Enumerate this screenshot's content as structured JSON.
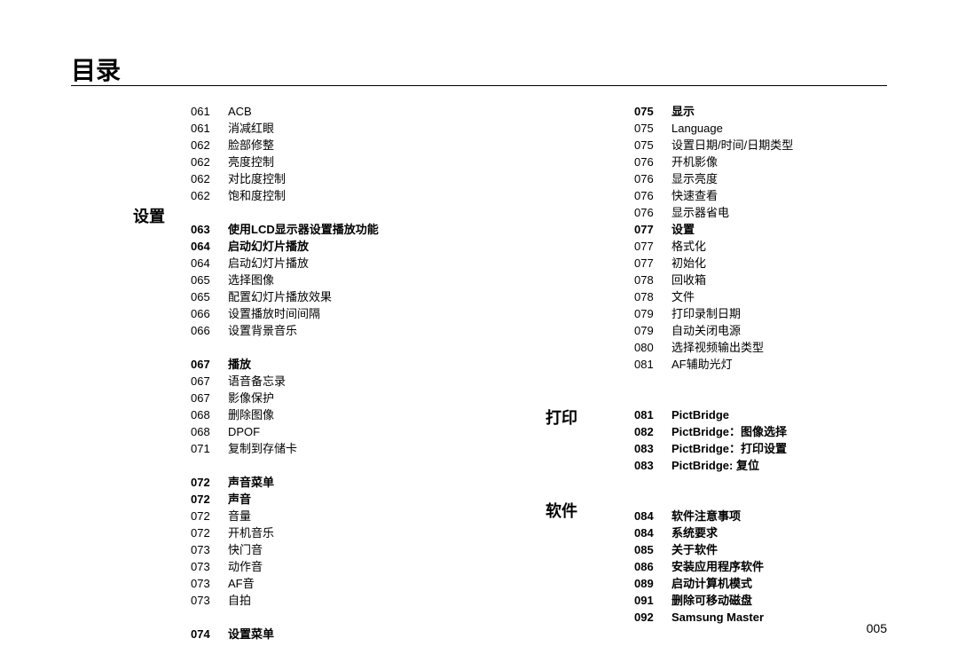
{
  "title": "目录",
  "pageNumber": "005",
  "sections": {
    "settings": "设置",
    "print": "打印",
    "software": "软件"
  },
  "col1": [
    {
      "pg": "061",
      "txt": "ACB",
      "bold": false
    },
    {
      "pg": "061",
      "txt": "消减红眼",
      "bold": false
    },
    {
      "pg": "062",
      "txt": "脸部修整",
      "bold": false
    },
    {
      "pg": "062",
      "txt": "亮度控制",
      "bold": false
    },
    {
      "pg": "062",
      "txt": "对比度控制",
      "bold": false
    },
    {
      "pg": "062",
      "txt": "饱和度控制",
      "bold": false
    },
    {
      "pg": "063",
      "txt": "使用LCD显示器设置播放功能",
      "bold": true
    },
    {
      "pg": "064",
      "txt": "启动幻灯片播放",
      "bold": true
    },
    {
      "pg": "064",
      "txt": "启动幻灯片播放",
      "bold": false
    },
    {
      "pg": "065",
      "txt": "选择图像",
      "bold": false
    },
    {
      "pg": "065",
      "txt": "配置幻灯片播放效果",
      "bold": false
    },
    {
      "pg": "066",
      "txt": "设置播放时间间隔",
      "bold": false
    },
    {
      "pg": "066",
      "txt": "设置背景音乐",
      "bold": false
    },
    {
      "pg": "067",
      "txt": "播放",
      "bold": true
    },
    {
      "pg": "067",
      "txt": "语音备忘录",
      "bold": false
    },
    {
      "pg": "067",
      "txt": "影像保护",
      "bold": false
    },
    {
      "pg": "068",
      "txt": "删除图像",
      "bold": false
    },
    {
      "pg": "068",
      "txt": "DPOF",
      "bold": false
    },
    {
      "pg": "071",
      "txt": "复制到存储卡",
      "bold": false
    },
    {
      "pg": "072",
      "txt": "声音菜单",
      "bold": true
    },
    {
      "pg": "072",
      "txt": "声音",
      "bold": true
    },
    {
      "pg": "072",
      "txt": "音量",
      "bold": false
    },
    {
      "pg": "072",
      "txt": "开机音乐",
      "bold": false
    },
    {
      "pg": "073",
      "txt": "快门音",
      "bold": false
    },
    {
      "pg": "073",
      "txt": "动作音",
      "bold": false
    },
    {
      "pg": "073",
      "txt": "AF音",
      "bold": false
    },
    {
      "pg": "073",
      "txt": "自拍",
      "bold": false
    },
    {
      "pg": "074",
      "txt": "设置菜单",
      "bold": true
    }
  ],
  "col2": [
    {
      "pg": "075",
      "txt": "显示",
      "bold": true
    },
    {
      "pg": "075",
      "txt": "Language",
      "bold": false
    },
    {
      "pg": "075",
      "txt": "设置日期/时间/日期类型",
      "bold": false
    },
    {
      "pg": "076",
      "txt": "开机影像",
      "bold": false
    },
    {
      "pg": "076",
      "txt": "显示亮度",
      "bold": false
    },
    {
      "pg": "076",
      "txt": "快速查看",
      "bold": false
    },
    {
      "pg": "076",
      "txt": "显示器省电",
      "bold": false
    },
    {
      "pg": "077",
      "txt": "设置",
      "bold": true
    },
    {
      "pg": "077",
      "txt": "格式化",
      "bold": false
    },
    {
      "pg": "077",
      "txt": "初始化",
      "bold": false
    },
    {
      "pg": "078",
      "txt": "回收箱",
      "bold": false
    },
    {
      "pg": "078",
      "txt": "文件",
      "bold": false
    },
    {
      "pg": "079",
      "txt": "打印录制日期",
      "bold": false
    },
    {
      "pg": "079",
      "txt": "自动关闭电源",
      "bold": false
    },
    {
      "pg": "080",
      "txt": "选择视频输出类型",
      "bold": false
    },
    {
      "pg": "081",
      "txt": "AF辅助光灯",
      "bold": false
    },
    {
      "pg": "081",
      "txt": "PictBridge",
      "bold": true
    },
    {
      "pg": "082",
      "txt": "PictBridge：图像选择",
      "bold": true
    },
    {
      "pg": "083",
      "txt": "PictBridge：打印设置",
      "bold": true
    },
    {
      "pg": "083",
      "txt": "PictBridge: 复位",
      "bold": true
    },
    {
      "pg": "084",
      "txt": "软件注意事项",
      "bold": true
    },
    {
      "pg": "084",
      "txt": "系统要求",
      "bold": true
    },
    {
      "pg": "085",
      "txt": "关于软件",
      "bold": true
    },
    {
      "pg": "086",
      "txt": "安装应用程序软件",
      "bold": true
    },
    {
      "pg": "089",
      "txt": "启动计算机模式",
      "bold": true
    },
    {
      "pg": "091",
      "txt": "删除可移动磁盘",
      "bold": true
    },
    {
      "pg": "092",
      "txt": "Samsung Master",
      "bold": true
    }
  ]
}
